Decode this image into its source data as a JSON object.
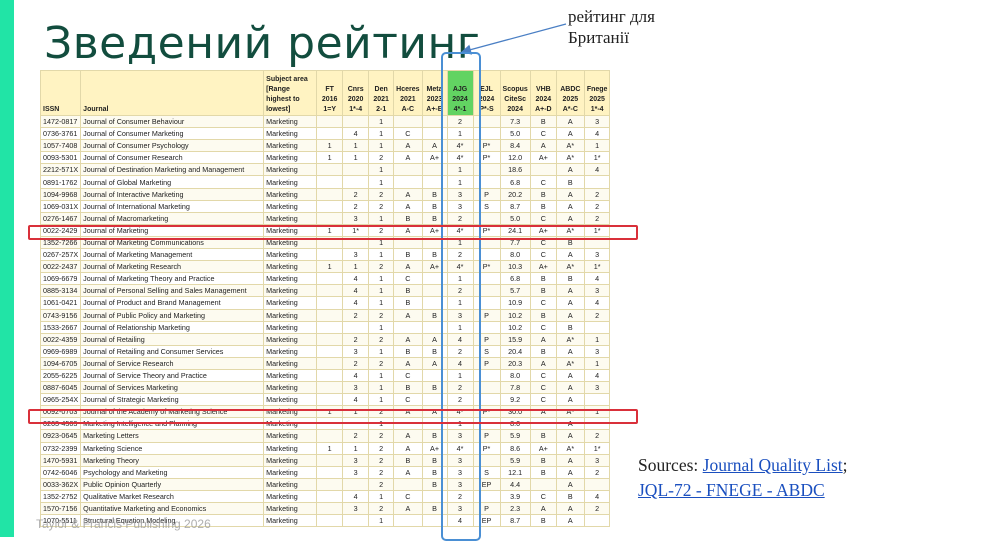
{
  "slide": {
    "title": "Зведений рейтинг",
    "callout": "рейтинг для\nБританії",
    "sources_prefix": "Sources: ",
    "sources_link1": "Journal Quality List",
    "sources_sep": ";",
    "sources_link2": "JQL-72 - FNEGE - ABDC",
    "footer": "Taylor & Francis Publishing 2026",
    "colors": {
      "accent": "#21e4a6",
      "title": "#124d3e",
      "ajg_header": "#62d362",
      "highlight_box": "#d9303a",
      "column_box": "#4a8fd4"
    }
  },
  "table": {
    "headers": [
      {
        "key": "issn",
        "text": "ISSN"
      },
      {
        "key": "journal",
        "text": "Journal"
      },
      {
        "key": "subject",
        "text": "Subject area [Range highest to lowest]"
      },
      {
        "key": "ft",
        "text": "FT 2016 1=Y"
      },
      {
        "key": "cnrs",
        "text": "Cnrs 2020 1*-4"
      },
      {
        "key": "den",
        "text": "Den 2021 2-1"
      },
      {
        "key": "hceres",
        "text": "Hceres 2021 A-C"
      },
      {
        "key": "meta",
        "text": "Meta 2023 A+-B"
      },
      {
        "key": "ajg",
        "text": "AJG 2024 4*-1"
      },
      {
        "key": "ejl",
        "text": "EJL 2024 P*-S"
      },
      {
        "key": "scopus",
        "text": "Scopus CiteSc 2024"
      },
      {
        "key": "vhb",
        "text": "VHB 2024 A+-D"
      },
      {
        "key": "abdc",
        "text": "ABDC 2025 A*-C"
      },
      {
        "key": "fnege",
        "text": "Fnege 2025 1*-4"
      }
    ],
    "rows": [
      [
        "1472-0817",
        "Journal of Consumer Behaviour",
        "Marketing",
        "",
        "",
        "1",
        "",
        "",
        "2",
        "",
        "7.3",
        "B",
        "A",
        "3"
      ],
      [
        "0736-3761",
        "Journal of Consumer Marketing",
        "Marketing",
        "",
        "4",
        "1",
        "C",
        "",
        "1",
        "",
        "5.0",
        "C",
        "A",
        "4"
      ],
      [
        "1057-7408",
        "Journal of Consumer Psychology",
        "Marketing",
        "1",
        "1",
        "1",
        "A",
        "A",
        "4*",
        "P*",
        "8.4",
        "A",
        "A*",
        "1"
      ],
      [
        "0093-5301",
        "Journal of Consumer Research",
        "Marketing",
        "1",
        "1",
        "2",
        "A",
        "A+",
        "4*",
        "P*",
        "12.0",
        "A+",
        "A*",
        "1*"
      ],
      [
        "2212-571X",
        "Journal of Destination Marketing and Management",
        "Marketing",
        "",
        "",
        "1",
        "",
        "",
        "1",
        "",
        "18.6",
        "",
        "A",
        "4"
      ],
      [
        "0891-1762",
        "Journal of Global Marketing",
        "Marketing",
        "",
        "",
        "1",
        "",
        "",
        "1",
        "",
        "6.8",
        "C",
        "B",
        ""
      ],
      [
        "1094-9968",
        "Journal of Interactive Marketing",
        "Marketing",
        "",
        "2",
        "2",
        "A",
        "B",
        "3",
        "P",
        "20.2",
        "B",
        "A",
        "2"
      ],
      [
        "1069-031X",
        "Journal of International Marketing",
        "Marketing",
        "",
        "2",
        "2",
        "A",
        "B",
        "3",
        "S",
        "8.7",
        "B",
        "A",
        "2"
      ],
      [
        "0276-1467",
        "Journal of Macromarketing",
        "Marketing",
        "",
        "3",
        "1",
        "B",
        "B",
        "2",
        "",
        "5.0",
        "C",
        "A",
        "2"
      ],
      [
        "0022-2429",
        "Journal of Marketing",
        "Marketing",
        "1",
        "1*",
        "2",
        "A",
        "A+",
        "4*",
        "P*",
        "24.1",
        "A+",
        "A*",
        "1*"
      ],
      [
        "1352-7266",
        "Journal of Marketing Communications",
        "Marketing",
        "",
        "",
        "1",
        "",
        "",
        "1",
        "",
        "7.7",
        "C",
        "B",
        ""
      ],
      [
        "0267-257X",
        "Journal of Marketing Management",
        "Marketing",
        "",
        "3",
        "1",
        "B",
        "B",
        "2",
        "",
        "8.0",
        "C",
        "A",
        "3"
      ],
      [
        "0022-2437",
        "Journal of Marketing Research",
        "Marketing",
        "1",
        "1",
        "2",
        "A",
        "A+",
        "4*",
        "P*",
        "10.3",
        "A+",
        "A*",
        "1*"
      ],
      [
        "1069-6679",
        "Journal of Marketing Theory and Practice",
        "Marketing",
        "",
        "4",
        "1",
        "C",
        "",
        "1",
        "",
        "6.8",
        "B",
        "B",
        "4"
      ],
      [
        "0885-3134",
        "Journal of Personal Selling and Sales Management",
        "Marketing",
        "",
        "4",
        "1",
        "B",
        "",
        "2",
        "",
        "5.7",
        "B",
        "A",
        "3"
      ],
      [
        "1061-0421",
        "Journal of Product and Brand Management",
        "Marketing",
        "",
        "4",
        "1",
        "B",
        "",
        "1",
        "",
        "10.9",
        "C",
        "A",
        "4"
      ],
      [
        "0743-9156",
        "Journal of Public Policy and Marketing",
        "Marketing",
        "",
        "2",
        "2",
        "A",
        "B",
        "3",
        "P",
        "10.2",
        "B",
        "A",
        "2"
      ],
      [
        "1533-2667",
        "Journal of Relationship Marketing",
        "Marketing",
        "",
        "",
        "1",
        "",
        "",
        "1",
        "",
        "10.2",
        "C",
        "B",
        ""
      ],
      [
        "0022-4359",
        "Journal of Retailing",
        "Marketing",
        "",
        "2",
        "2",
        "A",
        "A",
        "4",
        "P",
        "15.9",
        "A",
        "A*",
        "1"
      ],
      [
        "0969-6989",
        "Journal of Retailing and Consumer Services",
        "Marketing",
        "",
        "3",
        "1",
        "B",
        "B",
        "2",
        "S",
        "20.4",
        "B",
        "A",
        "3"
      ],
      [
        "1094-6705",
        "Journal of Service Research",
        "Marketing",
        "",
        "2",
        "2",
        "A",
        "A",
        "4",
        "P",
        "20.3",
        "A",
        "A*",
        "1"
      ],
      [
        "2055-6225",
        "Journal of Service Theory and Practice",
        "Marketing",
        "",
        "4",
        "1",
        "C",
        "",
        "1",
        "",
        "8.0",
        "C",
        "A",
        "4"
      ],
      [
        "0887-6045",
        "Journal of Services Marketing",
        "Marketing",
        "",
        "3",
        "1",
        "B",
        "B",
        "2",
        "",
        "7.8",
        "C",
        "A",
        "3"
      ],
      [
        "0965-254X",
        "Journal of Strategic Marketing",
        "Marketing",
        "",
        "4",
        "1",
        "C",
        "",
        "2",
        "",
        "9.2",
        "C",
        "A",
        ""
      ],
      [
        "0092-0703",
        "Journal of the Academy of Marketing Science",
        "Marketing",
        "1",
        "1",
        "2",
        "A",
        "A",
        "4*",
        "P*",
        "30.0",
        "A",
        "A*",
        "1"
      ],
      [
        "0263-4503",
        "Marketing Intelligence and Planning",
        "Marketing",
        "",
        "",
        "1",
        "",
        "",
        "1",
        "",
        "8.0",
        "",
        "A",
        ""
      ],
      [
        "0923-0645",
        "Marketing Letters",
        "Marketing",
        "",
        "2",
        "2",
        "A",
        "B",
        "3",
        "P",
        "5.9",
        "B",
        "A",
        "2"
      ],
      [
        "0732-2399",
        "Marketing Science",
        "Marketing",
        "1",
        "1",
        "2",
        "A",
        "A+",
        "4*",
        "P*",
        "8.6",
        "A+",
        "A*",
        "1*"
      ],
      [
        "1470-5931",
        "Marketing Theory",
        "Marketing",
        "",
        "3",
        "2",
        "B",
        "B",
        "3",
        "",
        "5.9",
        "B",
        "A",
        "3"
      ],
      [
        "0742-6046",
        "Psychology and Marketing",
        "Marketing",
        "",
        "3",
        "2",
        "A",
        "B",
        "3",
        "S",
        "12.1",
        "B",
        "A",
        "2"
      ],
      [
        "0033-362X",
        "Public Opinion Quarterly",
        "Marketing",
        "",
        "",
        "2",
        "",
        "B",
        "3",
        "EP",
        "4.4",
        "",
        "A",
        ""
      ],
      [
        "1352-2752",
        "Qualitative Market Research",
        "Marketing",
        "",
        "4",
        "1",
        "C",
        "",
        "2",
        "",
        "3.9",
        "C",
        "B",
        "4"
      ],
      [
        "1570-7156",
        "Quantitative Marketing and Economics",
        "Marketing",
        "",
        "3",
        "2",
        "A",
        "B",
        "3",
        "P",
        "2.3",
        "A",
        "A",
        "2"
      ],
      [
        "1070-5511",
        "Structural Equation Modeling",
        "Marketing",
        "",
        "",
        "1",
        "",
        "",
        "4",
        "EP",
        "8.7",
        "B",
        "A",
        ""
      ]
    ]
  }
}
